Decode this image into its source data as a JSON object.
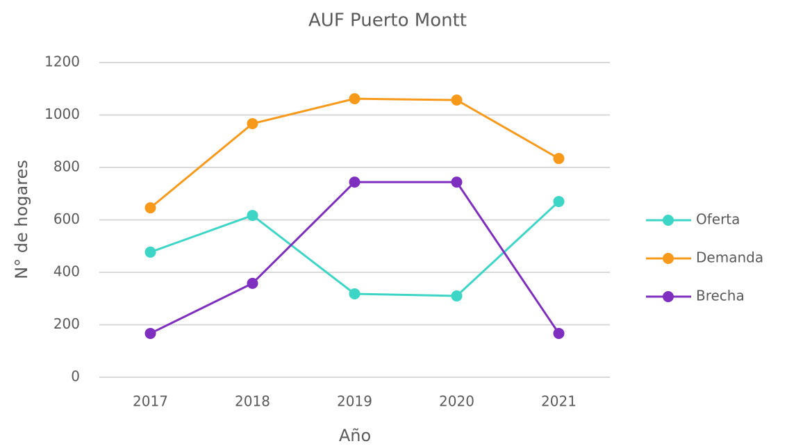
{
  "chart_data": {
    "type": "line",
    "title": "AUF Puerto Montt",
    "x_label": "Año",
    "y_label": "N° de hogares",
    "categories": [
      "2017",
      "2018",
      "2019",
      "2020",
      "2021"
    ],
    "series": [
      {
        "name": "Oferta",
        "color": "#3dd6c6",
        "values": [
          477,
          617,
          318,
          310,
          670
        ]
      },
      {
        "name": "Demanda",
        "color": "#f79a1c",
        "values": [
          646,
          967,
          1062,
          1057,
          834
        ]
      },
      {
        "name": "Brecha",
        "color": "#7e2fbf",
        "values": [
          167,
          358,
          744,
          744,
          167
        ]
      }
    ],
    "ylim": [
      0,
      1200
    ],
    "yticks": [
      0,
      200,
      400,
      600,
      800,
      1000,
      1200
    ],
    "grid": true,
    "legend": "right"
  }
}
